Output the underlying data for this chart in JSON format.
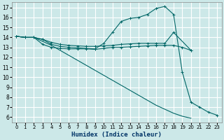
{
  "xlabel": "Humidex (Indice chaleur)",
  "bg_color": "#cce8e8",
  "grid_color": "#ffffff",
  "line_color": "#006666",
  "xlim": [
    -0.5,
    23.5
  ],
  "ylim": [
    5.5,
    17.5
  ],
  "xticks": [
    0,
    1,
    2,
    3,
    4,
    5,
    6,
    7,
    8,
    9,
    10,
    11,
    12,
    13,
    14,
    15,
    16,
    17,
    18,
    19,
    20,
    21,
    22,
    23
  ],
  "yticks": [
    6,
    7,
    8,
    9,
    10,
    11,
    12,
    13,
    14,
    15,
    16,
    17
  ],
  "line1_x": [
    0,
    1,
    2,
    3,
    4,
    5,
    6,
    7,
    8,
    9,
    10,
    11,
    12,
    13,
    14,
    15,
    16,
    17,
    18,
    19,
    20,
    21,
    22,
    23
  ],
  "line1_y": [
    14.1,
    14.0,
    14.0,
    13.8,
    13.3,
    13.1,
    13.0,
    12.95,
    12.9,
    12.85,
    13.4,
    14.5,
    15.6,
    15.9,
    16.0,
    16.3,
    16.9,
    17.1,
    16.3,
    10.5,
    7.5,
    7.0,
    6.5,
    6.2
  ],
  "line2_x": [
    0,
    1,
    2,
    3,
    4,
    5,
    6,
    7,
    8,
    9,
    10,
    11,
    12,
    13,
    14,
    15,
    16,
    17,
    18,
    20
  ],
  "line2_y": [
    14.1,
    14.0,
    14.0,
    13.8,
    13.5,
    13.3,
    13.2,
    13.15,
    13.1,
    13.1,
    13.15,
    13.2,
    13.3,
    13.35,
    13.4,
    13.4,
    13.4,
    13.4,
    14.5,
    12.7
  ],
  "line3_x": [
    0,
    1,
    2,
    3,
    4,
    5,
    6,
    7,
    8,
    9,
    10,
    11,
    12,
    13,
    14,
    15,
    16,
    17,
    18,
    19,
    20
  ],
  "line3_y": [
    14.1,
    14.0,
    14.0,
    13.3,
    13.0,
    12.9,
    12.85,
    12.85,
    12.85,
    12.8,
    12.9,
    13.0,
    13.0,
    13.05,
    13.1,
    13.15,
    13.2,
    13.2,
    13.2,
    13.0,
    12.7
  ],
  "line4_x": [
    0,
    1,
    2,
    3,
    4,
    5,
    6,
    7,
    8,
    9,
    10,
    11,
    12,
    13,
    14,
    15,
    16,
    17,
    18,
    19,
    20,
    21,
    22,
    23
  ],
  "line4_y": [
    14.1,
    14.0,
    14.0,
    13.6,
    13.2,
    12.7,
    12.2,
    11.7,
    11.2,
    10.7,
    10.2,
    9.7,
    9.2,
    8.7,
    8.2,
    7.7,
    7.2,
    6.8,
    6.4,
    6.1,
    5.9,
    null,
    null,
    null
  ],
  "xlabel_fontsize": 6.5,
  "xlabel_color": "#003366",
  "tick_fontsize": 5.5
}
